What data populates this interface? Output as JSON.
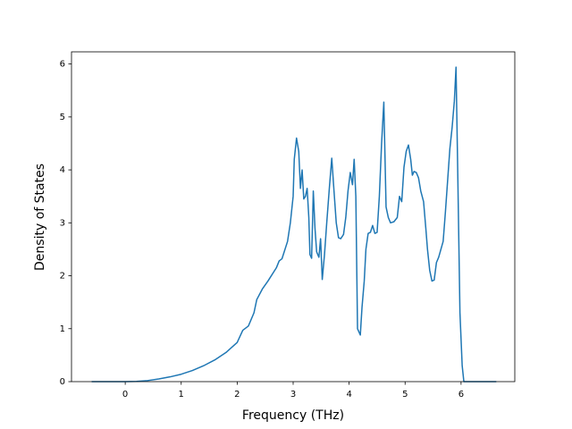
{
  "chart_data": {
    "type": "line",
    "xlabel": "Frequency (THz)",
    "ylabel": "Density of States",
    "x": [
      -0.6,
      0,
      0.2,
      0.4,
      0.6,
      0.8,
      1.0,
      1.2,
      1.4,
      1.6,
      1.8,
      2.0,
      2.1,
      2.2,
      2.3,
      2.35,
      2.45,
      2.55,
      2.7,
      2.75,
      2.8,
      2.9,
      2.95,
      3.0,
      3.02,
      3.06,
      3.1,
      3.13,
      3.16,
      3.19,
      3.22,
      3.25,
      3.28,
      3.3,
      3.33,
      3.36,
      3.39,
      3.42,
      3.46,
      3.49,
      3.52,
      3.56,
      3.6,
      3.65,
      3.69,
      3.73,
      3.77,
      3.81,
      3.85,
      3.9,
      3.94,
      3.98,
      4.02,
      4.06,
      4.09,
      4.12,
      4.15,
      4.2,
      4.23,
      4.27,
      4.3,
      4.34,
      4.38,
      4.42,
      4.46,
      4.5,
      4.54,
      4.58,
      4.62,
      4.66,
      4.7,
      4.74,
      4.8,
      4.86,
      4.9,
      4.94,
      4.98,
      5.02,
      5.06,
      5.1,
      5.13,
      5.16,
      5.2,
      5.24,
      5.28,
      5.33,
      5.37,
      5.4,
      5.44,
      5.48,
      5.52,
      5.56,
      5.6,
      5.64,
      5.68,
      5.72,
      5.76,
      5.8,
      5.84,
      5.88,
      5.91,
      5.94,
      5.98,
      6.02,
      6.05,
      6.63
    ],
    "series": [
      {
        "color": "#1f77b4",
        "values": [
          0,
          0,
          0.005,
          0.02,
          0.05,
          0.09,
          0.14,
          0.21,
          0.3,
          0.41,
          0.55,
          0.74,
          0.97,
          1.05,
          1.3,
          1.55,
          1.75,
          1.9,
          2.15,
          2.28,
          2.32,
          2.65,
          3.0,
          3.5,
          4.2,
          4.6,
          4.35,
          3.65,
          4.0,
          3.45,
          3.5,
          3.65,
          3.1,
          2.4,
          2.33,
          3.6,
          2.9,
          2.45,
          2.35,
          2.7,
          1.93,
          2.4,
          3.0,
          3.7,
          4.22,
          3.6,
          3.0,
          2.72,
          2.7,
          2.78,
          3.1,
          3.6,
          3.95,
          3.72,
          4.2,
          3.5,
          1.0,
          0.88,
          1.4,
          1.9,
          2.5,
          2.8,
          2.82,
          2.95,
          2.8,
          2.82,
          3.5,
          4.5,
          5.28,
          3.3,
          3.1,
          3.0,
          3.02,
          3.1,
          3.5,
          3.4,
          4.05,
          4.35,
          4.47,
          4.2,
          3.9,
          3.97,
          3.95,
          3.85,
          3.6,
          3.4,
          2.9,
          2.5,
          2.1,
          1.9,
          1.92,
          2.25,
          2.35,
          2.5,
          2.65,
          3.2,
          3.8,
          4.4,
          4.8,
          5.3,
          5.94,
          4.0,
          1.3,
          0.3,
          0,
          0
        ]
      }
    ],
    "xlim": [
      -0.96,
      6.96
    ],
    "ylim": [
      0,
      6.23
    ],
    "xticks": [
      0,
      1,
      2,
      3,
      4,
      5,
      6
    ],
    "yticks": [
      0,
      1,
      2,
      3,
      4,
      5,
      6
    ],
    "grid": false
  }
}
